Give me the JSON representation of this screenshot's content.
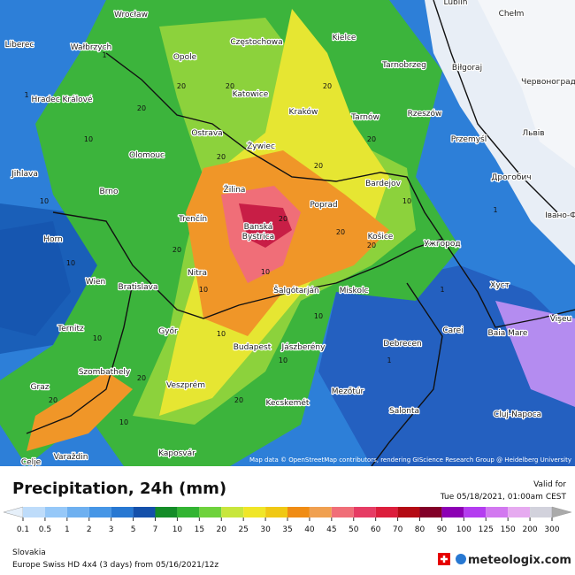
{
  "map": {
    "cities": [
      "Lublin",
      "Wrocław",
      "Chełm",
      "Liberec",
      "Wałbrzych",
      "Opole",
      "Częstochowa",
      "Kielce",
      "Tarnobrzeg",
      "Biłgoraj",
      "Червоноград",
      "Hradec Králové",
      "Katowice",
      "Kraków",
      "Tarnów",
      "Rzeszów",
      "Przemyśl",
      "Львів",
      "Ostrava",
      "Olomouc",
      "Żywiec",
      "Jihlava",
      "Brno",
      "Žilina",
      "Bardejov",
      "Дрогобич",
      "Poprad",
      "Trenčín",
      "Banská",
      "Bystrica",
      "Košice",
      "Ужгород",
      "Івано-Ф",
      "Horn",
      "Wien",
      "Bratislava",
      "Nitra",
      "Šalgótarján",
      "Miskolc",
      "Хуст",
      "Vişeu",
      "Ternitz",
      "Győr",
      "Budapest",
      "Jászberény",
      "Debrecen",
      "Carei",
      "Baia Mare",
      "Szombathely",
      "Veszprém",
      "Graz",
      "Mezőtúr",
      "Kecskemét",
      "Salonta",
      "Cluj-Napoca",
      "Kaposvár",
      "Varaždin",
      "Celje"
    ],
    "contour_labels": [
      "1",
      "1",
      "20",
      "20",
      "10",
      "10",
      "20",
      "20",
      "10",
      "20",
      "10",
      "20",
      "20",
      "10",
      "10",
      "20",
      "20",
      "10",
      "10",
      "1",
      "20",
      "10",
      "20",
      "10",
      "1",
      "20",
      "20",
      "20",
      "10",
      "1"
    ],
    "attribution": "Map data © OpenStreetMap contributors, rendering GIScience Research Group @ Heidelberg University"
  },
  "legend": {
    "title": "Precipitation, 24h (mm)",
    "valid_label": "Valid for",
    "valid_time": "Tue 05/18/2021, 01:00am CEST",
    "labels": [
      "0.1",
      "0.5",
      "1",
      "2",
      "3",
      "5",
      "7",
      "10",
      "15",
      "20",
      "25",
      "30",
      "35",
      "40",
      "45",
      "50",
      "60",
      "70",
      "80",
      "90",
      "100",
      "125",
      "150",
      "200",
      "300"
    ],
    "colors": [
      "#e6f0fa",
      "#bedcfa",
      "#96c8f8",
      "#6eb0f0",
      "#4696e6",
      "#2878d2",
      "#1450aa",
      "#148c28",
      "#32b432",
      "#6ed23c",
      "#c8e63c",
      "#f0e628",
      "#f0c814",
      "#f08c14",
      "#f0a050",
      "#f06e78",
      "#e63c64",
      "#dc1e3c",
      "#b40a14",
      "#820028",
      "#8c00b4",
      "#b43cf0",
      "#d278f0",
      "#e6aaf0",
      "#d2d2dc",
      "#aaaaaa"
    ]
  },
  "footer": {
    "region": "Slovakia",
    "model": "Europe Swiss HD 4x4 (3 days)  from  05/16/2021/12z",
    "brand": "meteologix.com"
  }
}
